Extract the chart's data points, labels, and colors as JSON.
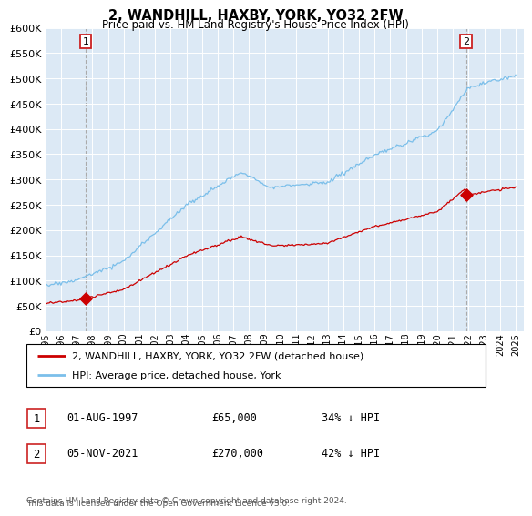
{
  "title": "2, WANDHILL, HAXBY, YORK, YO32 2FW",
  "subtitle": "Price paid vs. HM Land Registry's House Price Index (HPI)",
  "sale1_price": 65000,
  "sale1_t": 1997.583,
  "sale2_price": 270000,
  "sale2_t": 2021.833,
  "hpi_color": "#7bbfea",
  "price_color": "#cc0000",
  "vline_color": "#c8c8c8",
  "legend_line1": "2, WANDHILL, HAXBY, YORK, YO32 2FW (detached house)",
  "legend_line2": "HPI: Average price, detached house, York",
  "footer": "Contains HM Land Registry data © Crown copyright and database right 2024.\nThis data is licensed under the Open Government Licence v3.0.",
  "ylim": [
    0,
    600000
  ],
  "yticks": [
    0,
    50000,
    100000,
    150000,
    200000,
    250000,
    300000,
    350000,
    400000,
    450000,
    500000,
    550000,
    600000
  ],
  "xlim_start": 1995.0,
  "xlim_end": 2025.5,
  "background_color": "#ffffff",
  "plot_bg_color": "#dce9f5"
}
